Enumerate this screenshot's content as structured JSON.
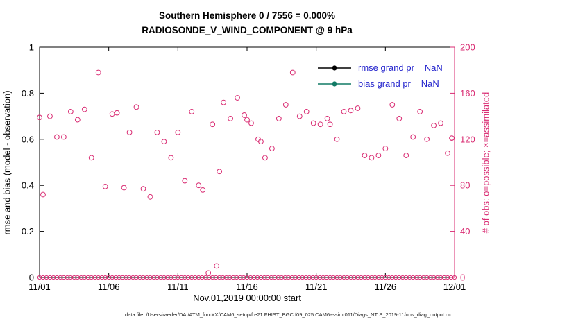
{
  "header": {
    "title_line1": "Southern Hemisphere 0 / 7556 = 0.000%",
    "title_line2": "RADIOSONDE_V_WIND_COMPONENT @ 9 hPa"
  },
  "caption": "data file: /Users/raeder/DAI/ATM_forcXX/CAM6_setup/f.e21.FHIST_BGC.f09_025.CAM6assim.011/Diags_NTrS_2019-11/obs_diag_output.nc",
  "colors": {
    "accent_pink": "#d92b72",
    "legend_text": "#2222cc",
    "rmse_black": "#000000",
    "bias_teal": "#117a65",
    "axis_black": "#000000"
  },
  "chart_data": {
    "type": "scatter",
    "title": "Southern Hemisphere 0 / 7556 = 0.000%",
    "subtitle": "RADIOSONDE_V_WIND_COMPONENT @ 9 hPa",
    "xlabel": "Nov.01,2019 00:00:00 start",
    "ylabel_left": "rmse and bias (model - observation)",
    "ylabel_right": "# of obs: o=possible; ×=assimilated",
    "x_ticks": [
      "11/01",
      "11/06",
      "11/11",
      "11/16",
      "11/21",
      "11/26",
      "12/01"
    ],
    "x_range_days": [
      0,
      30
    ],
    "ylim_left": [
      0,
      1
    ],
    "yticks_left": [
      "0",
      "0.2",
      "0.4",
      "0.6",
      "0.8",
      "1"
    ],
    "ylim_right": [
      0,
      200
    ],
    "yticks_right": [
      "0",
      "40",
      "80",
      "120",
      "160",
      "200"
    ],
    "grid": false,
    "legend_position": "upper-right-inside",
    "series": [
      {
        "name": "rmse",
        "legend_label": "rmse grand pr = NaN",
        "color": "#000000",
        "grand_mean": "NaN",
        "points": []
      },
      {
        "name": "bias",
        "legend_label": "bias grand pr = NaN",
        "color": "#117a65",
        "grand_mean": "NaN",
        "points": []
      },
      {
        "name": "possible_obs",
        "marker": "o",
        "color": "#d92b72",
        "y_axis": "right",
        "points": [
          [
            0,
            139
          ],
          [
            0.25,
            72
          ],
          [
            0.75,
            140
          ],
          [
            1.25,
            122
          ],
          [
            1.75,
            122
          ],
          [
            2.25,
            144
          ],
          [
            2.75,
            137
          ],
          [
            3.25,
            146
          ],
          [
            3.75,
            104
          ],
          [
            4.25,
            178
          ],
          [
            4.75,
            79
          ],
          [
            5.25,
            142
          ],
          [
            5.6,
            143
          ],
          [
            6.1,
            78
          ],
          [
            6.5,
            126
          ],
          [
            7,
            148
          ],
          [
            7.5,
            77
          ],
          [
            8,
            70
          ],
          [
            8.5,
            126
          ],
          [
            9,
            118
          ],
          [
            9.5,
            104
          ],
          [
            10,
            126
          ],
          [
            10.5,
            84
          ],
          [
            11,
            144
          ],
          [
            11.5,
            80
          ],
          [
            11.8,
            76
          ],
          [
            12.2,
            4
          ],
          [
            12.5,
            133
          ],
          [
            12.8,
            10
          ],
          [
            13,
            92
          ],
          [
            13.3,
            152
          ],
          [
            13.8,
            138
          ],
          [
            14.3,
            156
          ],
          [
            14.8,
            141
          ],
          [
            15,
            137
          ],
          [
            15.3,
            134
          ],
          [
            15.8,
            120
          ],
          [
            16,
            118
          ],
          [
            16.3,
            104
          ],
          [
            16.8,
            112
          ],
          [
            17.3,
            138
          ],
          [
            17.8,
            150
          ],
          [
            18.3,
            178
          ],
          [
            18.8,
            140
          ],
          [
            19.3,
            144
          ],
          [
            19.8,
            134
          ],
          [
            20.3,
            133
          ],
          [
            20.8,
            138
          ],
          [
            21,
            133
          ],
          [
            21.5,
            120
          ],
          [
            22,
            144
          ],
          [
            22.5,
            145
          ],
          [
            23,
            147
          ],
          [
            23.5,
            106
          ],
          [
            24,
            104
          ],
          [
            24.5,
            106
          ],
          [
            25,
            112
          ],
          [
            25.5,
            150
          ],
          [
            26,
            138
          ],
          [
            26.5,
            106
          ],
          [
            27,
            122
          ],
          [
            27.5,
            144
          ],
          [
            28,
            120
          ],
          [
            28.5,
            132
          ],
          [
            29,
            134
          ],
          [
            29.5,
            108
          ],
          [
            29.8,
            121
          ]
        ]
      },
      {
        "name": "assimilated_obs",
        "marker": "o",
        "color": "#d92b72",
        "y_axis": "right",
        "points_uniform": {
          "x_start": 0,
          "x_end": 30,
          "x_step": 0.25,
          "value": 0
        }
      }
    ]
  }
}
